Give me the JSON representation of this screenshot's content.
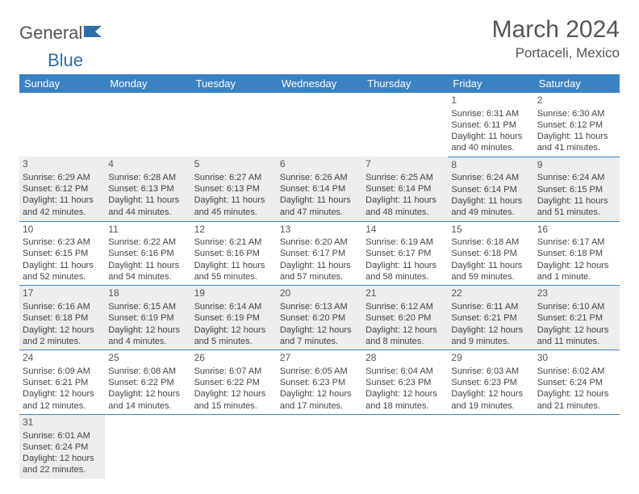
{
  "logo": {
    "text_a": "General",
    "text_b": "Blue",
    "color_a": "#6b6b6b",
    "color_b": "#2f6ea8",
    "flag_color": "#2f6ea8"
  },
  "title": "March 2024",
  "location": "Portaceli, Mexico",
  "header_bg": "#3b82c4",
  "alt_row_bg": "#ededed",
  "border_color": "#3b82c4",
  "day_headers": [
    "Sunday",
    "Monday",
    "Tuesday",
    "Wednesday",
    "Thursday",
    "Friday",
    "Saturday"
  ],
  "weeks": [
    [
      null,
      null,
      null,
      null,
      null,
      {
        "n": "1",
        "sr": "Sunrise: 6:31 AM",
        "ss": "Sunset: 6:11 PM",
        "dl": "Daylight: 11 hours and 40 minutes."
      },
      {
        "n": "2",
        "sr": "Sunrise: 6:30 AM",
        "ss": "Sunset: 6:12 PM",
        "dl": "Daylight: 11 hours and 41 minutes."
      }
    ],
    [
      {
        "n": "3",
        "sr": "Sunrise: 6:29 AM",
        "ss": "Sunset: 6:12 PM",
        "dl": "Daylight: 11 hours and 42 minutes."
      },
      {
        "n": "4",
        "sr": "Sunrise: 6:28 AM",
        "ss": "Sunset: 6:13 PM",
        "dl": "Daylight: 11 hours and 44 minutes."
      },
      {
        "n": "5",
        "sr": "Sunrise: 6:27 AM",
        "ss": "Sunset: 6:13 PM",
        "dl": "Daylight: 11 hours and 45 minutes."
      },
      {
        "n": "6",
        "sr": "Sunrise: 6:26 AM",
        "ss": "Sunset: 6:14 PM",
        "dl": "Daylight: 11 hours and 47 minutes."
      },
      {
        "n": "7",
        "sr": "Sunrise: 6:25 AM",
        "ss": "Sunset: 6:14 PM",
        "dl": "Daylight: 11 hours and 48 minutes."
      },
      {
        "n": "8",
        "sr": "Sunrise: 6:24 AM",
        "ss": "Sunset: 6:14 PM",
        "dl": "Daylight: 11 hours and 49 minutes."
      },
      {
        "n": "9",
        "sr": "Sunrise: 6:24 AM",
        "ss": "Sunset: 6:15 PM",
        "dl": "Daylight: 11 hours and 51 minutes."
      }
    ],
    [
      {
        "n": "10",
        "sr": "Sunrise: 6:23 AM",
        "ss": "Sunset: 6:15 PM",
        "dl": "Daylight: 11 hours and 52 minutes."
      },
      {
        "n": "11",
        "sr": "Sunrise: 6:22 AM",
        "ss": "Sunset: 6:16 PM",
        "dl": "Daylight: 11 hours and 54 minutes."
      },
      {
        "n": "12",
        "sr": "Sunrise: 6:21 AM",
        "ss": "Sunset: 6:16 PM",
        "dl": "Daylight: 11 hours and 55 minutes."
      },
      {
        "n": "13",
        "sr": "Sunrise: 6:20 AM",
        "ss": "Sunset: 6:17 PM",
        "dl": "Daylight: 11 hours and 57 minutes."
      },
      {
        "n": "14",
        "sr": "Sunrise: 6:19 AM",
        "ss": "Sunset: 6:17 PM",
        "dl": "Daylight: 11 hours and 58 minutes."
      },
      {
        "n": "15",
        "sr": "Sunrise: 6:18 AM",
        "ss": "Sunset: 6:18 PM",
        "dl": "Daylight: 11 hours and 59 minutes."
      },
      {
        "n": "16",
        "sr": "Sunrise: 6:17 AM",
        "ss": "Sunset: 6:18 PM",
        "dl": "Daylight: 12 hours and 1 minute."
      }
    ],
    [
      {
        "n": "17",
        "sr": "Sunrise: 6:16 AM",
        "ss": "Sunset: 6:18 PM",
        "dl": "Daylight: 12 hours and 2 minutes."
      },
      {
        "n": "18",
        "sr": "Sunrise: 6:15 AM",
        "ss": "Sunset: 6:19 PM",
        "dl": "Daylight: 12 hours and 4 minutes."
      },
      {
        "n": "19",
        "sr": "Sunrise: 6:14 AM",
        "ss": "Sunset: 6:19 PM",
        "dl": "Daylight: 12 hours and 5 minutes."
      },
      {
        "n": "20",
        "sr": "Sunrise: 6:13 AM",
        "ss": "Sunset: 6:20 PM",
        "dl": "Daylight: 12 hours and 7 minutes."
      },
      {
        "n": "21",
        "sr": "Sunrise: 6:12 AM",
        "ss": "Sunset: 6:20 PM",
        "dl": "Daylight: 12 hours and 8 minutes."
      },
      {
        "n": "22",
        "sr": "Sunrise: 6:11 AM",
        "ss": "Sunset: 6:21 PM",
        "dl": "Daylight: 12 hours and 9 minutes."
      },
      {
        "n": "23",
        "sr": "Sunrise: 6:10 AM",
        "ss": "Sunset: 6:21 PM",
        "dl": "Daylight: 12 hours and 11 minutes."
      }
    ],
    [
      {
        "n": "24",
        "sr": "Sunrise: 6:09 AM",
        "ss": "Sunset: 6:21 PM",
        "dl": "Daylight: 12 hours and 12 minutes."
      },
      {
        "n": "25",
        "sr": "Sunrise: 6:08 AM",
        "ss": "Sunset: 6:22 PM",
        "dl": "Daylight: 12 hours and 14 minutes."
      },
      {
        "n": "26",
        "sr": "Sunrise: 6:07 AM",
        "ss": "Sunset: 6:22 PM",
        "dl": "Daylight: 12 hours and 15 minutes."
      },
      {
        "n": "27",
        "sr": "Sunrise: 6:05 AM",
        "ss": "Sunset: 6:23 PM",
        "dl": "Daylight: 12 hours and 17 minutes."
      },
      {
        "n": "28",
        "sr": "Sunrise: 6:04 AM",
        "ss": "Sunset: 6:23 PM",
        "dl": "Daylight: 12 hours and 18 minutes."
      },
      {
        "n": "29",
        "sr": "Sunrise: 6:03 AM",
        "ss": "Sunset: 6:23 PM",
        "dl": "Daylight: 12 hours and 19 minutes."
      },
      {
        "n": "30",
        "sr": "Sunrise: 6:02 AM",
        "ss": "Sunset: 6:24 PM",
        "dl": "Daylight: 12 hours and 21 minutes."
      }
    ],
    [
      {
        "n": "31",
        "sr": "Sunrise: 6:01 AM",
        "ss": "Sunset: 6:24 PM",
        "dl": "Daylight: 12 hours and 22 minutes."
      },
      null,
      null,
      null,
      null,
      null,
      null
    ]
  ]
}
